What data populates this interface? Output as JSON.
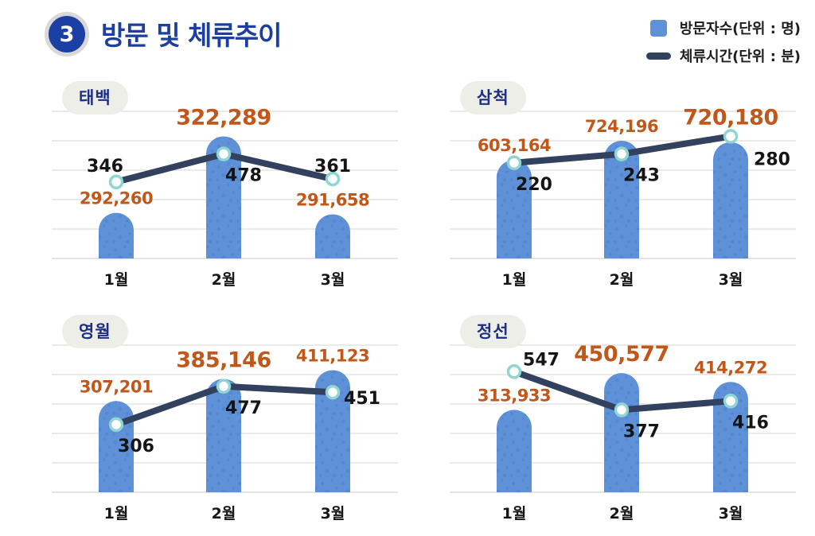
{
  "header": {
    "badge": "3",
    "title": "방문 및 체류추이",
    "legend": [
      {
        "type": "bar",
        "label": "방문자수(단위 : 명)"
      },
      {
        "type": "line",
        "label": "체류시간(단위 : 분)"
      }
    ]
  },
  "colors": {
    "bar": "#5e91d8",
    "bar_speckle": "#3c73c0",
    "line": "#31415e",
    "marker_ring": "#8fd6d2",
    "marker_fill": "#ffffff",
    "value_orange": "#c0571b",
    "label_black": "#151515",
    "grid": "#e4e4e2",
    "title_blue": "#1d3f9e",
    "badge_blue": "#1c3fa3",
    "badge_ring": "#d8d8d8",
    "pill_bg": "#eceee7",
    "pill_text": "#1e2f7f"
  },
  "chart_data": [
    {
      "type": "bar",
      "key": "taebaek",
      "region": "태백",
      "categories": [
        "1월",
        "2월",
        "3월"
      ],
      "series": [
        {
          "name": "방문자수(명)",
          "values": [
            292260,
            322289,
            291658
          ],
          "bold_index": 1
        },
        {
          "name": "체류시간(분)",
          "values": [
            346,
            478,
            361
          ]
        }
      ],
      "layout": {
        "grid": true,
        "bar_frac": [
          0.31,
          0.83,
          0.3
        ],
        "point_frac": [
          0.52,
          0.71,
          0.54
        ],
        "point_label_pos": [
          "above-left",
          "below-right",
          "above"
        ]
      }
    },
    {
      "type": "bar",
      "key": "samcheok",
      "region": "삼척",
      "categories": [
        "1월",
        "2월",
        "3월"
      ],
      "series": [
        {
          "name": "방문자수(명)",
          "values": [
            603164,
            724196,
            720180
          ],
          "bold_index": 2
        },
        {
          "name": "체류시간(분)",
          "values": [
            220,
            243,
            280
          ]
        }
      ],
      "layout": {
        "grid": true,
        "bar_frac": [
          0.67,
          0.8,
          0.79
        ],
        "point_frac": [
          0.65,
          0.71,
          0.83
        ],
        "point_label_pos": [
          "below-right",
          "below-right",
          "far-below-right"
        ]
      }
    },
    {
      "type": "bar",
      "key": "yeongwol",
      "region": "영월",
      "categories": [
        "1월",
        "2월",
        "3월"
      ],
      "series": [
        {
          "name": "방문자수(명)",
          "values": [
            307201,
            385146,
            411123
          ],
          "bold_index": 1
        },
        {
          "name": "체류시간(분)",
          "values": [
            306,
            477,
            451
          ]
        }
      ],
      "layout": {
        "grid": true,
        "bar_frac": [
          0.62,
          0.77,
          0.83
        ],
        "point_frac": [
          0.46,
          0.72,
          0.68
        ],
        "point_label_pos": [
          "below-right",
          "below-right",
          "right"
        ]
      }
    },
    {
      "type": "bar",
      "key": "jeongseon",
      "region": "정선",
      "categories": [
        "1월",
        "2월",
        "3월"
      ],
      "series": [
        {
          "name": "방문자수(명)",
          "values": [
            313933,
            450577,
            414272
          ],
          "bold_index": 1
        },
        {
          "name": "체류시간(분)",
          "values": [
            547,
            377,
            416
          ]
        }
      ],
      "layout": {
        "grid": true,
        "bar_frac": [
          0.56,
          0.81,
          0.75
        ],
        "point_frac": [
          0.82,
          0.56,
          0.62
        ],
        "point_label_pos": [
          "above-right",
          "below-right",
          "below-right"
        ]
      }
    }
  ]
}
